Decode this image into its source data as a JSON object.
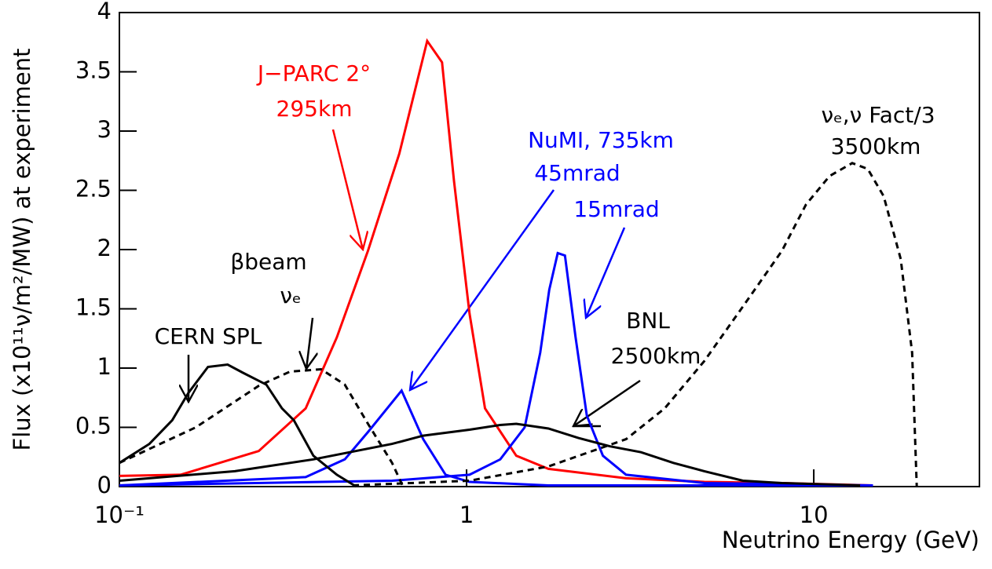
{
  "chart_data": {
    "type": "line",
    "x_label": "Neutrino Energy (GeV)",
    "y_label": "Flux (x10¹¹ν/m²/MW) at experiment",
    "xscale": "log",
    "xlim": [
      0.1,
      30
    ],
    "ylim": [
      0,
      4
    ],
    "xticks": [
      {
        "value": 0.1,
        "label": "10⁻¹"
      },
      1,
      10
    ],
    "yticks": [
      0,
      0.5,
      1,
      1.5,
      2,
      2.5,
      3,
      3.5,
      4
    ],
    "series": [
      {
        "color": "#ff0000",
        "dash": false,
        "x": [
          0.1,
          0.15,
          0.252,
          0.344,
          0.423,
          0.52,
          0.64,
          0.77,
          0.85,
          0.92,
          1.02,
          1.13,
          1.39,
          1.72,
          2.88,
          4.84,
          8.1,
          14.8
        ],
        "values": [
          0.09,
          0.1,
          0.3,
          0.66,
          1.26,
          1.99,
          2.81,
          3.76,
          3.58,
          2.58,
          1.46,
          0.66,
          0.26,
          0.15,
          0.07,
          0.04,
          0.03,
          0.01
        ]
      },
      {
        "color": "#0000ff",
        "dash": false,
        "x": [
          0.1,
          0.344,
          0.446,
          0.52,
          0.65,
          0.75,
          0.87,
          1.02,
          1.72,
          14.8
        ],
        "values": [
          0.01,
          0.08,
          0.23,
          0.46,
          0.81,
          0.4,
          0.1,
          0.04,
          0.01,
          0.01
        ]
      },
      {
        "color": "#0000ff",
        "dash": false,
        "x": [
          0.1,
          0.61,
          1.02,
          1.25,
          1.47,
          1.63,
          1.73,
          1.83,
          1.92,
          2.06,
          2.22,
          2.47,
          2.88,
          4.84,
          14.8
        ],
        "values": [
          0.01,
          0.05,
          0.1,
          0.23,
          0.5,
          1.13,
          1.66,
          1.97,
          1.95,
          1.26,
          0.6,
          0.26,
          0.1,
          0.03,
          0.01
        ]
      },
      {
        "color": "#000000",
        "dash": false,
        "x": [
          0.1,
          0.122,
          0.142,
          0.158,
          0.18,
          0.205,
          0.227,
          0.265,
          0.294,
          0.318,
          0.362,
          0.423,
          0.481
        ],
        "values": [
          0.2,
          0.36,
          0.56,
          0.79,
          1.01,
          1.03,
          0.96,
          0.86,
          0.66,
          0.56,
          0.26,
          0.1,
          0
        ]
      },
      {
        "color": "#000000",
        "dash": true,
        "x": [
          0.1,
          0.166,
          0.252,
          0.31,
          0.381,
          0.446,
          0.52,
          0.61,
          0.656
        ],
        "values": [
          0.2,
          0.5,
          0.85,
          0.97,
          0.99,
          0.86,
          0.53,
          0.2,
          0
        ]
      },
      {
        "color": "#000000",
        "dash": false,
        "x": [
          0.1,
          0.215,
          0.362,
          0.61,
          0.75,
          1.02,
          1.25,
          1.39,
          1.72,
          2.1,
          2.59,
          3.18,
          3.94,
          4.84,
          6.25,
          8.1,
          13.6
        ],
        "values": [
          0.05,
          0.13,
          0.23,
          0.36,
          0.43,
          0.48,
          0.52,
          0.53,
          0.49,
          0.41,
          0.34,
          0.29,
          0.2,
          0.13,
          0.05,
          0.03,
          0.01
        ]
      },
      {
        "color": "#000000",
        "dash": true,
        "x": [
          0.47,
          1.02,
          1.72,
          2.88,
          3.72,
          4.84,
          6.25,
          8.1,
          9.5,
          11.1,
          12.9,
          14.3,
          15.9,
          17.8,
          19.2,
          19.8
        ],
        "values": [
          0.01,
          0.05,
          0.17,
          0.4,
          0.66,
          1.06,
          1.52,
          1.99,
          2.38,
          2.62,
          2.73,
          2.68,
          2.45,
          1.92,
          1.13,
          0
        ]
      }
    ],
    "annotations": [
      {
        "text": "J−PARC 2°",
        "color": "#ff0000"
      },
      {
        "text": "295km",
        "color": "#ff0000"
      },
      {
        "text": "NuMI, 735km",
        "color": "#0000ff"
      },
      {
        "text": "45mrad",
        "color": "#0000ff"
      },
      {
        "text": "15mrad",
        "color": "#0000ff"
      },
      {
        "text": "νₑ,ν Fact/3",
        "color": "#000000"
      },
      {
        "text": "3500km",
        "color": "#000000"
      },
      {
        "text": "βbeam",
        "color": "#000000"
      },
      {
        "text": "νₑ",
        "color": "#000000"
      },
      {
        "text": "CERN SPL",
        "color": "#000000"
      },
      {
        "text": "BNL",
        "color": "#000000"
      },
      {
        "text": "2500km",
        "color": "#000000"
      }
    ]
  }
}
